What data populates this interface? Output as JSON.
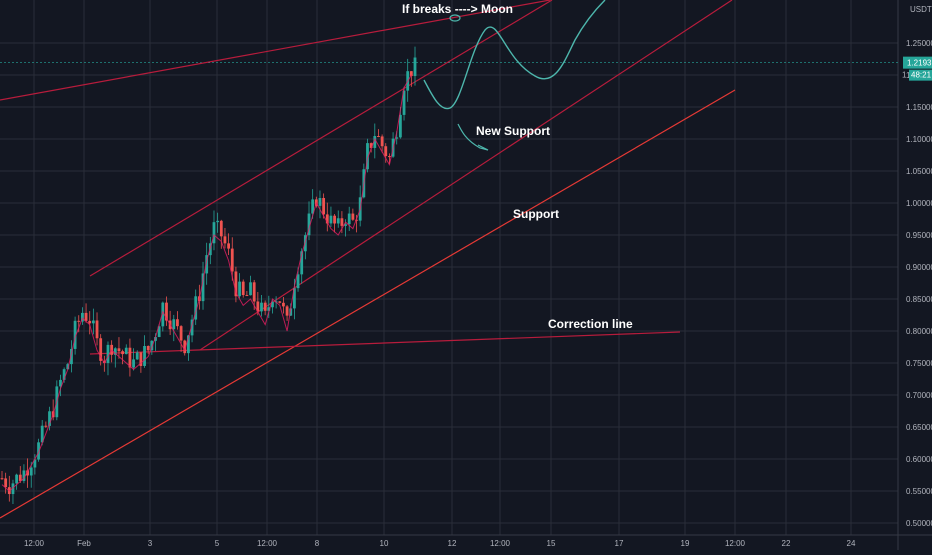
{
  "chart_data": {
    "type": "candlestick",
    "currency_label": "USDT",
    "y_ticks": [
      "1.25000",
      "1.20000",
      "1.15000",
      "1.10000",
      "1.05000",
      "1.00000",
      "0.95000",
      "0.90000",
      "0.85000",
      "0.80000",
      "0.75000",
      "0.70000",
      "0.65000",
      "0.60000",
      "0.55000",
      "0.50000"
    ],
    "y_range": [
      0.5,
      1.28
    ],
    "x_ticks": [
      "12:00",
      "Feb",
      "3",
      "5",
      "12:00",
      "8",
      "10",
      "12",
      "12:00",
      "15",
      "17",
      "19",
      "12:00",
      "22",
      "24"
    ],
    "last_price": "1.21931",
    "countdown": "48:21",
    "countdown_prefix": "1",
    "annotations": {
      "moon": "If breaks ----> Moon",
      "new_support": "New Support",
      "support": "Support",
      "correction": "Correction line"
    },
    "candles_close_path": [
      0.57,
      0.56,
      0.57,
      0.58,
      0.6,
      0.62,
      0.65,
      0.68,
      0.72,
      0.75,
      0.8,
      0.83,
      0.82,
      0.78,
      0.76,
      0.78,
      0.77,
      0.76,
      0.75,
      0.76,
      0.77,
      0.8,
      0.84,
      0.82,
      0.8,
      0.78,
      0.82,
      0.86,
      0.92,
      0.96,
      0.95,
      0.92,
      0.87,
      0.85,
      0.86,
      0.84,
      0.82,
      0.86,
      0.85,
      0.81,
      0.88,
      0.93,
      0.97,
      1.01,
      0.99,
      0.97,
      0.96,
      0.98,
      0.97,
      1.0,
      1.08,
      1.11,
      1.09,
      1.07,
      1.12,
      1.19,
      1.21
    ]
  }
}
